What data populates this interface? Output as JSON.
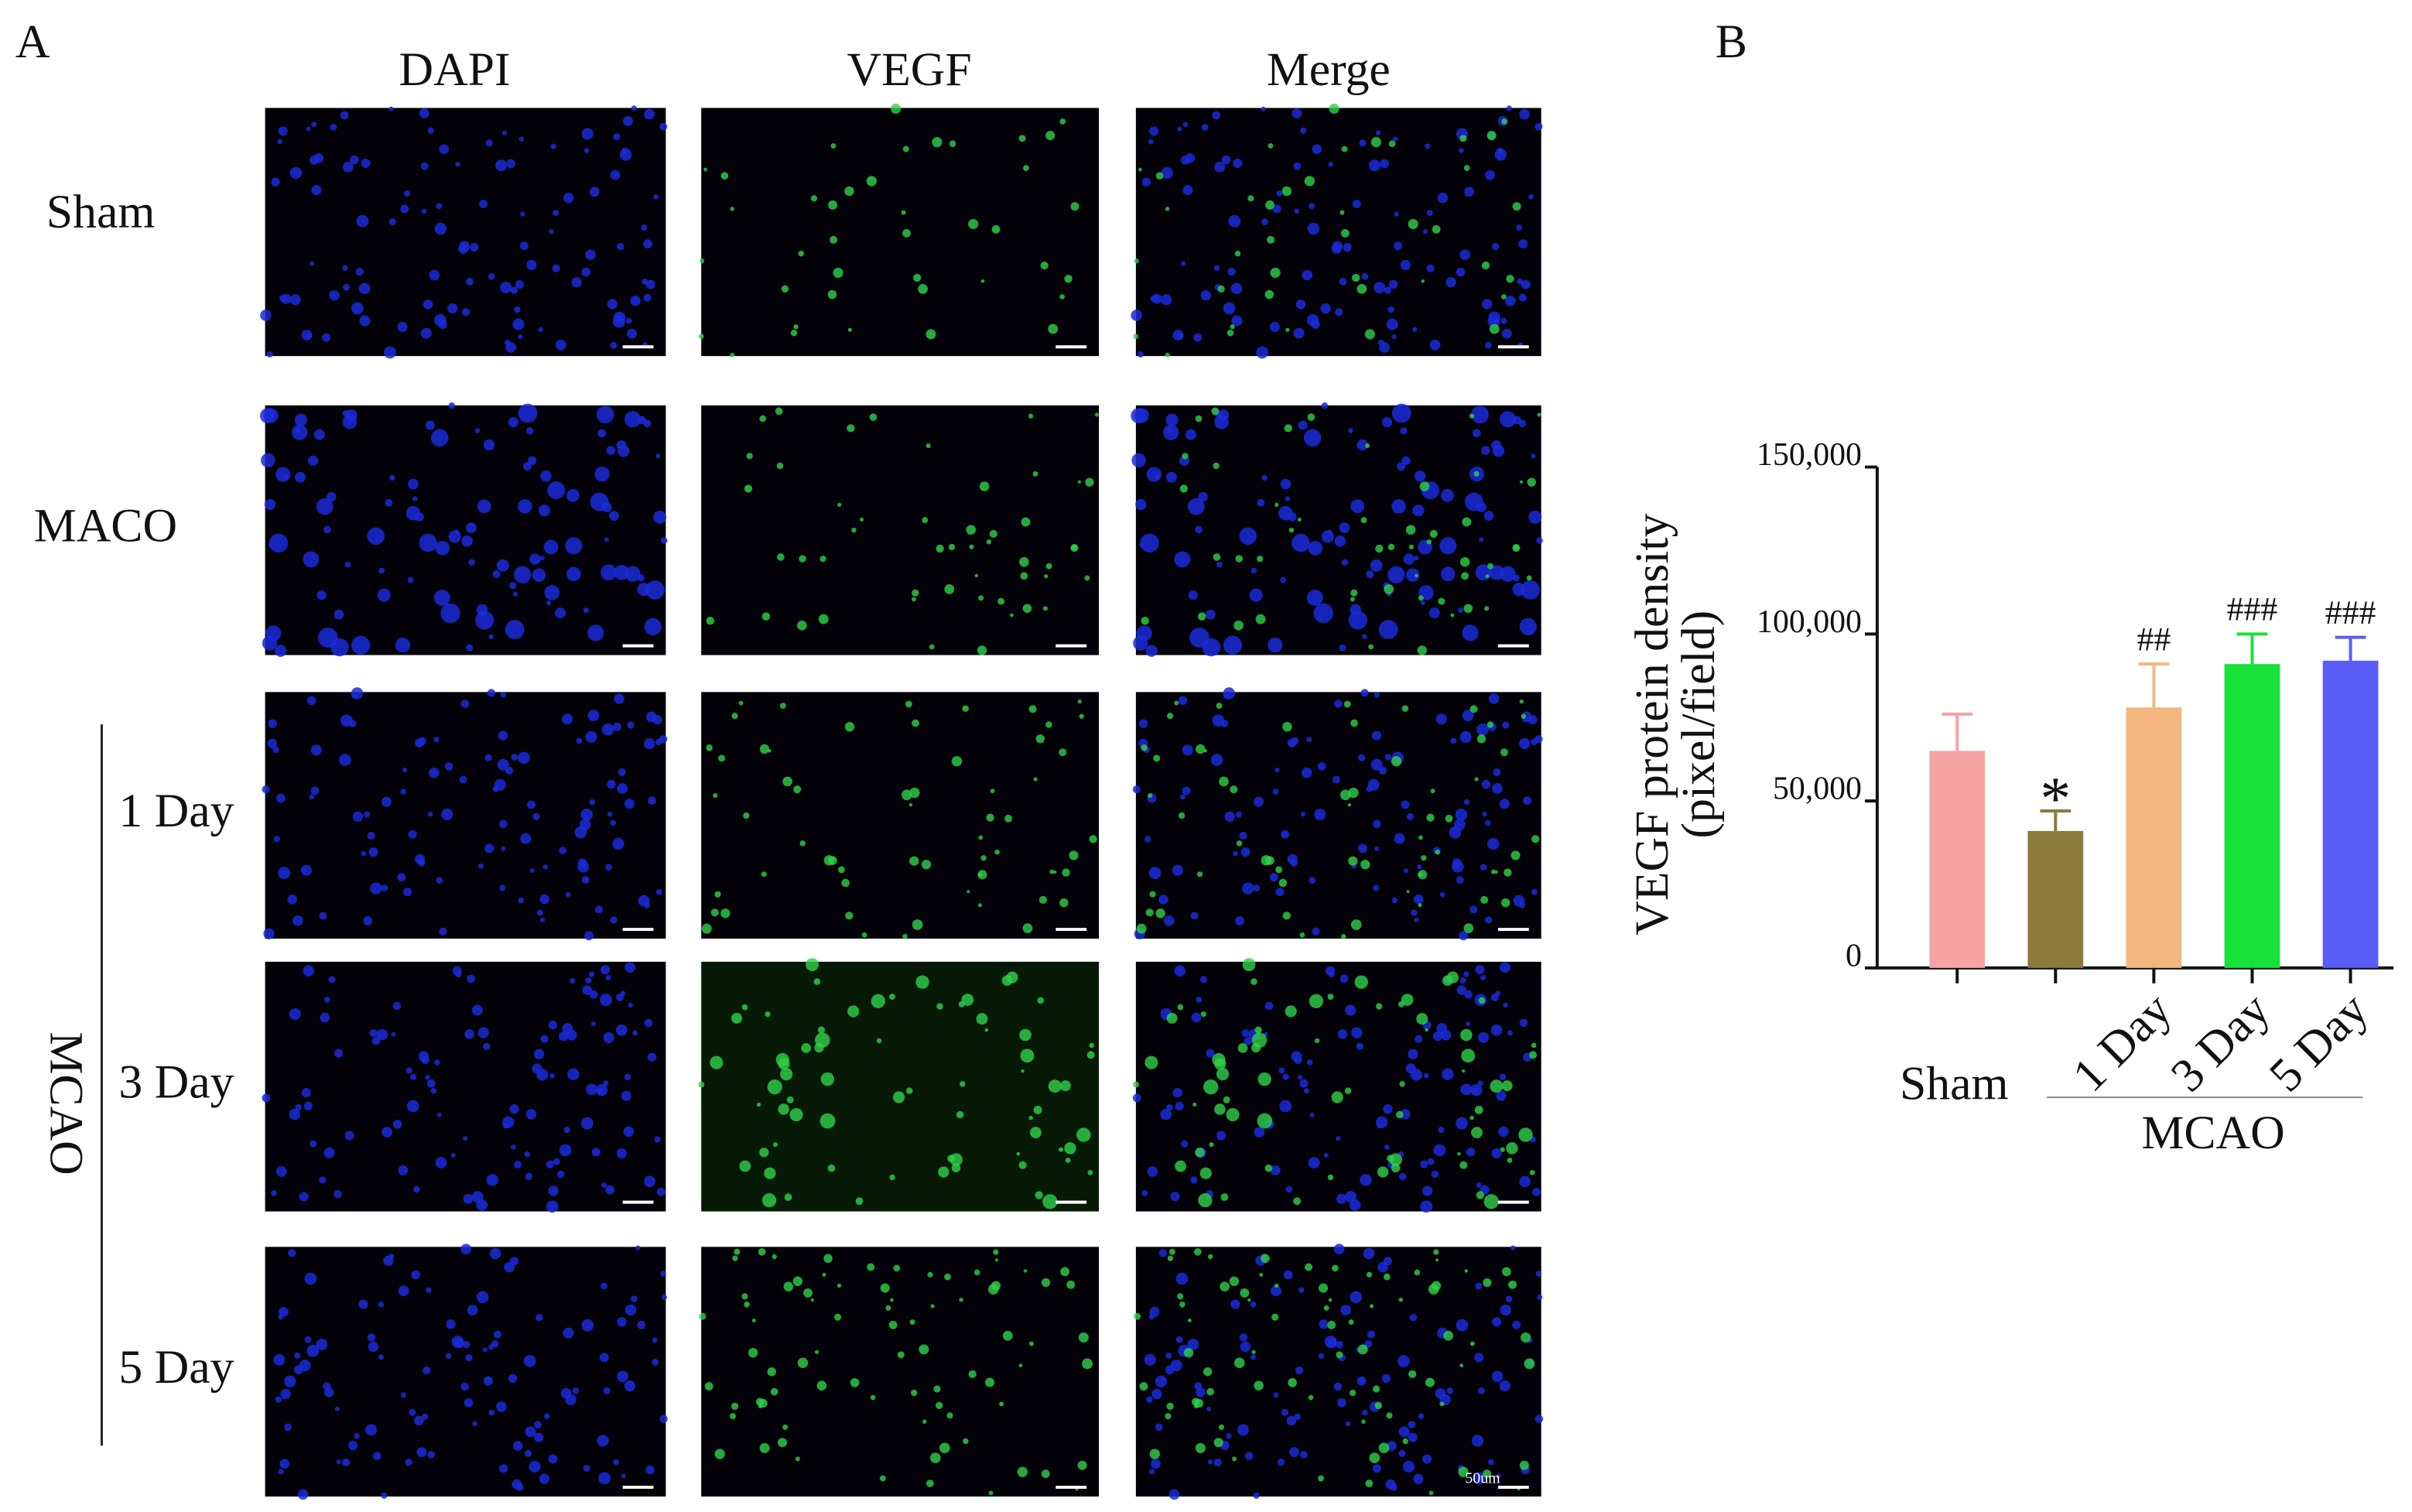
{
  "panel_a": {
    "label": "A",
    "columns": [
      "DAPI",
      "VEGF",
      "Merge"
    ],
    "rows": [
      "Sham",
      "MACO",
      "1 Day",
      "3 Day",
      "5 Day"
    ],
    "group_label": "MCAO",
    "scale_bar": "50um"
  },
  "chart_data": {
    "type": "bar",
    "panel_label": "B",
    "ylabel": [
      "VEGF  protein density",
      "(pixel/field)"
    ],
    "categories": [
      "Sham",
      null,
      "1 Day",
      "3 Day",
      "5 Day"
    ],
    "values": [
      65000,
      41000,
      78000,
      91000,
      92000
    ],
    "errors": [
      11000,
      6000,
      13000,
      9000,
      7000
    ],
    "colors": [
      "#f6a3a3",
      "#8a7a3c",
      "#f2b67e",
      "#16e23a",
      "#5a5cf6"
    ],
    "annotations": [
      null,
      "*",
      "##",
      "###",
      "###"
    ],
    "group_label": "MCAO",
    "ylim": [
      0,
      150000
    ],
    "yticks": [
      0,
      {
        "value": 50000,
        "label": "50,000"
      },
      {
        "value": 100000,
        "label": "100,000"
      },
      {
        "value": 150000,
        "label": "150,000"
      }
    ]
  }
}
